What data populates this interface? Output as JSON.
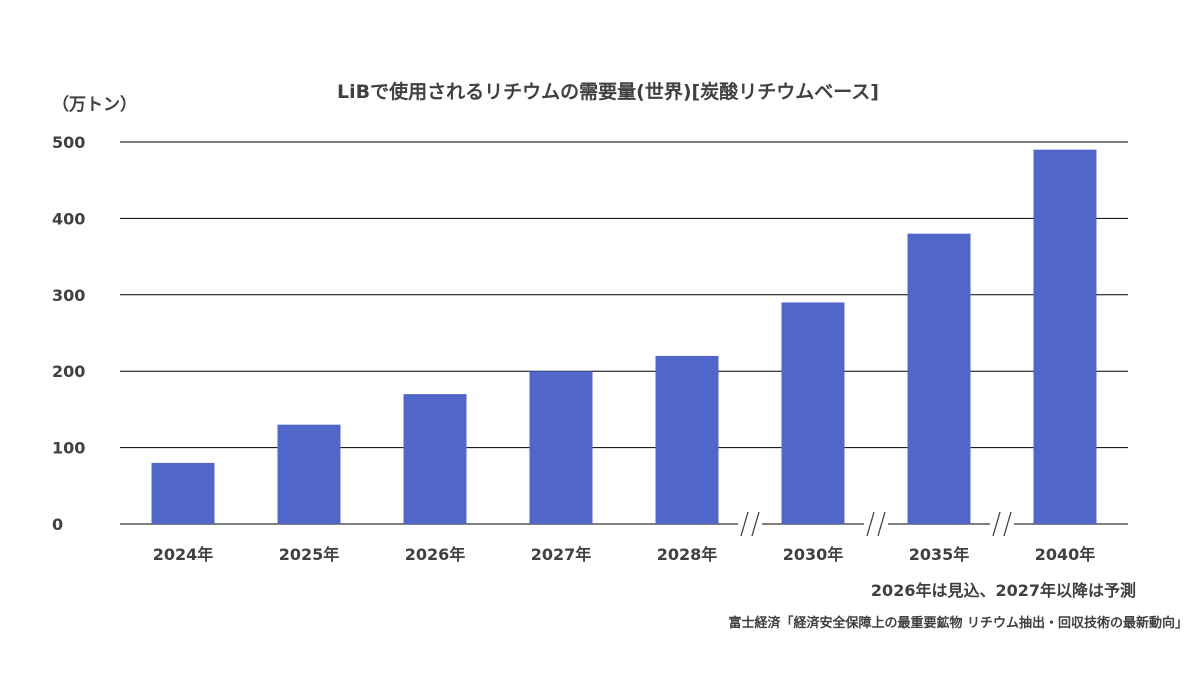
{
  "chart_data": {
    "type": "bar",
    "title": "LiBで使用されるリチウムの需要量(世界)[炭酸リチウムベース]",
    "ylabel": "（万トン）",
    "xlabel": "",
    "categories": [
      "2024年",
      "2025年",
      "2026年",
      "2027年",
      "2028年",
      "2030年",
      "2035年",
      "2040年"
    ],
    "values": [
      80,
      130,
      170,
      200,
      220,
      290,
      380,
      490
    ],
    "ylim": [
      0,
      500
    ],
    "yticks": [
      0,
      100,
      200,
      300,
      400,
      500
    ],
    "axis_break_before": [
      "2030年",
      "2035年",
      "2040年"
    ],
    "grid": true,
    "legend": "none",
    "bar_color": "#5067C9"
  },
  "notes": {
    "forecast": "2026年は見込、2027年以降は予測",
    "source": "富士経済「経済安全保障上の最重要鉱物 リチウム抽出・回収技術の最新動向」"
  },
  "colors": {
    "bar": "#5067C9",
    "text": "#404040",
    "grid": "#000000"
  }
}
